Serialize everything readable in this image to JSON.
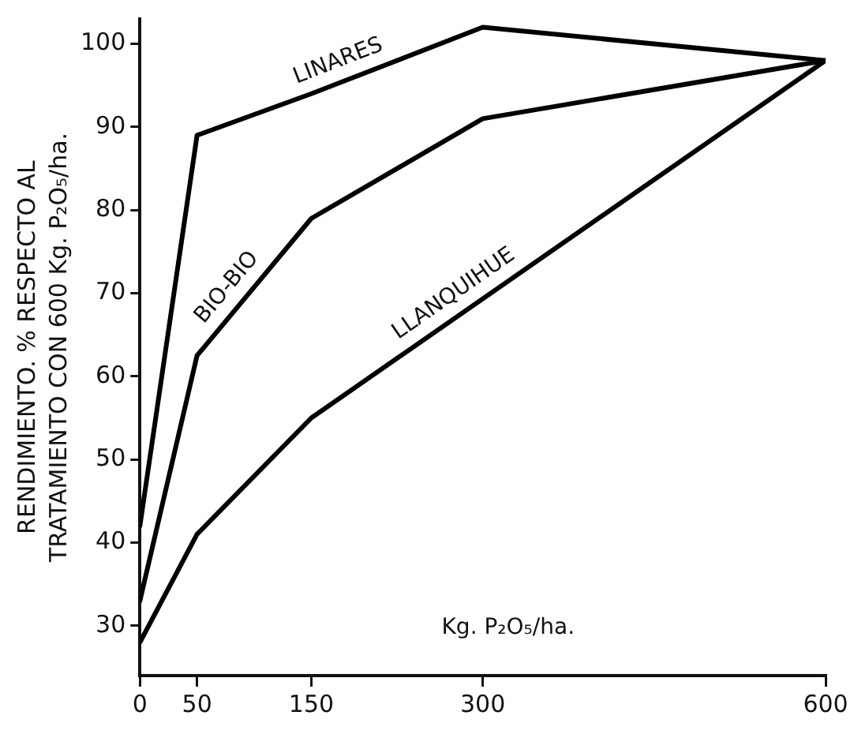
{
  "chart_data": {
    "type": "line",
    "ylabel": "RENDIMIENTO. % RESPECTO AL TRATAMIENTO CON 600 Kg. P₂O₅/ha.",
    "xlabel": "Kg. P₂O₅/ha.",
    "xlim": [
      0,
      600
    ],
    "xticks": [
      0,
      50,
      150,
      300,
      600
    ],
    "ylim": [
      24,
      103
    ],
    "yticks": [
      30,
      40,
      50,
      60,
      70,
      80,
      90,
      100
    ],
    "grid": false,
    "legend": false,
    "marker": "none",
    "line_style": "solid",
    "series": [
      {
        "name": "LINARES",
        "color": "#000000",
        "x": [
          0,
          50,
          150,
          300,
          600
        ],
        "values": [
          42,
          89,
          94,
          102,
          98
        ]
      },
      {
        "name": "BIO-BIO",
        "color": "#000000",
        "x": [
          0,
          50,
          150,
          300,
          600
        ],
        "values": [
          33,
          62.5,
          79,
          91,
          98
        ]
      },
      {
        "name": "LLANQUIHUE",
        "color": "#000000",
        "x": [
          0,
          50,
          150,
          600
        ],
        "values": [
          28,
          41,
          55,
          98
        ]
      }
    ]
  }
}
